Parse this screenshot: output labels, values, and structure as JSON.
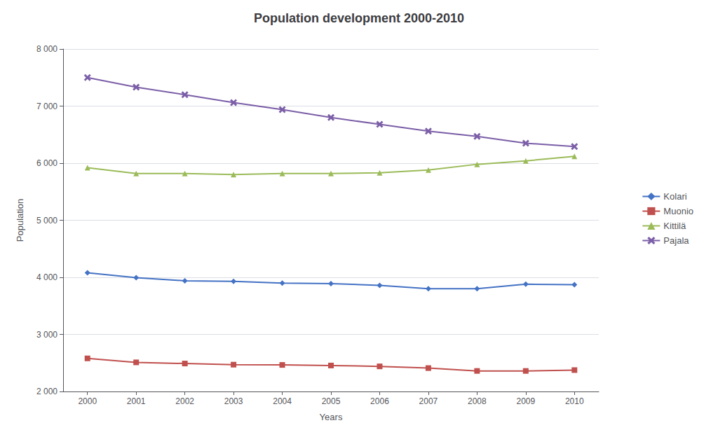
{
  "chart_data": {
    "type": "line",
    "title": "Population development 2000-2010",
    "xlabel": "Years",
    "ylabel": "Population",
    "x": [
      2000,
      2001,
      2002,
      2003,
      2004,
      2005,
      2006,
      2007,
      2008,
      2009,
      2010
    ],
    "series": [
      {
        "name": "Kolari",
        "color": "#4472C4",
        "marker": "diamond",
        "values": [
          4080,
          3995,
          3940,
          3930,
          3900,
          3890,
          3860,
          3800,
          3800,
          3880,
          3870
        ]
      },
      {
        "name": "Muonio",
        "color": "#C0504D",
        "marker": "square",
        "values": [
          2580,
          2510,
          2490,
          2470,
          2465,
          2455,
          2440,
          2410,
          2360,
          2360,
          2375
        ]
      },
      {
        "name": "Kittilä",
        "color": "#9BBB59",
        "marker": "triangle",
        "values": [
          5920,
          5820,
          5820,
          5800,
          5820,
          5820,
          5830,
          5880,
          5980,
          6040,
          6120
        ]
      },
      {
        "name": "Pajala",
        "color": "#7B5EA7",
        "marker": "x",
        "values": [
          7500,
          7330,
          7200,
          7060,
          6940,
          6800,
          6680,
          6560,
          6470,
          6350,
          6290
        ]
      }
    ],
    "xlim": [
      1999.5,
      2010.5
    ],
    "xticks": [
      2000,
      2001,
      2002,
      2003,
      2004,
      2005,
      2006,
      2007,
      2008,
      2009,
      2010
    ],
    "ylim": [
      2000,
      8000
    ],
    "yticks": [
      {
        "value": 2000,
        "label": "2 000"
      },
      {
        "value": 3000,
        "label": "3 000"
      },
      {
        "value": 4000,
        "label": "4 000"
      },
      {
        "value": 5000,
        "label": "5 000"
      },
      {
        "value": 6000,
        "label": "6 000"
      },
      {
        "value": 7000,
        "label": "7 000"
      },
      {
        "value": 8000,
        "label": "8 000"
      }
    ],
    "grid": "y",
    "legend": "right"
  }
}
